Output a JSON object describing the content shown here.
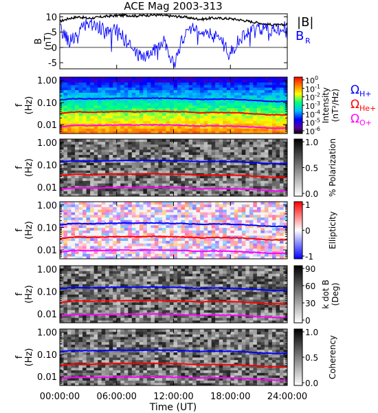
{
  "title": "ACE Mag 2003-313",
  "xlabel": "Time (UT)",
  "x_ticks": [
    "00:00:00",
    "06:00:00",
    "12:00:00",
    "18:00:00",
    "24:00:00"
  ],
  "colors": {
    "B_total": "#000000",
    "B_R": "#0000ff",
    "H_plus": "#0000ff",
    "He_plus": "#ff0000",
    "O_plus": "#ff00ff"
  },
  "chart_data": [
    {
      "type": "line",
      "panel": "magnetic-field",
      "ylabel": "B\n(nT)",
      "ylim": [
        -7,
        11
      ],
      "y_ticks": [
        "10",
        "5",
        "0",
        "-5"
      ],
      "x_hours": [
        0,
        1,
        2,
        3,
        4,
        5,
        6,
        7,
        8,
        9,
        10,
        11,
        12,
        13,
        14,
        15,
        16,
        17,
        18,
        19,
        20,
        21,
        22,
        23,
        24
      ],
      "series": [
        {
          "name": "|B|",
          "color": "#000000",
          "values": [
            8.5,
            9.5,
            10,
            9.5,
            9.8,
            10.2,
            10.4,
            10.5,
            10.3,
            10.5,
            10.6,
            10.4,
            10.2,
            10.0,
            9.5,
            9.2,
            9.6,
            9.5,
            9.4,
            9.0,
            8.5,
            8.0,
            7.5,
            7.3,
            7.5
          ]
        },
        {
          "name": "B_R",
          "color": "#0000ff",
          "values": [
            6,
            2,
            5,
            8,
            7,
            5,
            6,
            2,
            -2,
            -3,
            -1,
            3,
            -6,
            3,
            7,
            6,
            4,
            3,
            -2,
            3,
            5,
            6,
            6,
            6,
            7
          ]
        }
      ],
      "legend": [
        "|B|",
        "B_R"
      ]
    },
    {
      "type": "heatmap",
      "panel": "intensity",
      "ylabel": "f\n(Hz)",
      "y_scale": "log",
      "y_ticks": [
        "1.00",
        "0.10",
        "0.01"
      ],
      "colorbar_label": "Intensity\n(nT²/Hz)",
      "colorbar_ticks": [
        "10^0",
        "10^-1",
        "10^-2",
        "10^-3",
        "10^-4",
        "10^-5",
        "10^-6"
      ],
      "colormap": "rainbow",
      "legend": [
        "Ω_H+",
        "Ω_He+",
        "Ω_O+"
      ]
    },
    {
      "type": "heatmap",
      "panel": "polarization",
      "ylabel": "f\n(Hz)",
      "y_scale": "log",
      "y_ticks": [
        "1.00",
        "0.10",
        "0.01"
      ],
      "colorbar_label": "% Polarization",
      "colorbar_ticks": [
        "1.0",
        "0.5",
        "0.0"
      ],
      "colormap": "grayscale"
    },
    {
      "type": "heatmap",
      "panel": "ellipticity",
      "ylabel": "f\n(Hz)",
      "y_scale": "log",
      "y_ticks": [
        "1.00",
        "0.10",
        "0.01"
      ],
      "colorbar_label": "Ellipticity",
      "colorbar_ticks": [
        "1",
        "0",
        "-1"
      ],
      "colormap": "blue-white-red"
    },
    {
      "type": "heatmap",
      "panel": "k-dot-b",
      "ylabel": "f\n(Hz)",
      "y_scale": "log",
      "y_ticks": [
        "1.00",
        "0.10",
        "0.01"
      ],
      "colorbar_label": "k dot B\n(Deg)",
      "colorbar_ticks": [
        "90",
        "60",
        "30",
        "0"
      ],
      "colormap": "grayscale"
    },
    {
      "type": "heatmap",
      "panel": "coherency",
      "ylabel": "f\n(Hz)",
      "y_scale": "log",
      "y_ticks": [
        "1.00",
        "0.10",
        "0.01"
      ],
      "colorbar_label": "Coherency",
      "colorbar_ticks": [
        "1.0",
        "0.5",
        "0.0"
      ],
      "colormap": "grayscale"
    }
  ],
  "gyrofrequency_lines": {
    "x_hours": [
      0,
      1,
      2,
      3,
      4,
      5,
      6,
      7,
      8,
      9,
      10,
      11,
      12,
      13,
      14,
      15,
      16,
      17,
      18,
      19,
      20,
      21,
      22,
      23,
      24
    ],
    "H_plus_hz": [
      0.13,
      0.145,
      0.15,
      0.145,
      0.148,
      0.152,
      0.155,
      0.156,
      0.153,
      0.156,
      0.158,
      0.155,
      0.152,
      0.15,
      0.142,
      0.137,
      0.143,
      0.141,
      0.14,
      0.134,
      0.127,
      0.12,
      0.113,
      0.11,
      0.113
    ],
    "He_plus_hz": [
      0.032,
      0.036,
      0.038,
      0.036,
      0.037,
      0.038,
      0.039,
      0.039,
      0.038,
      0.039,
      0.04,
      0.039,
      0.038,
      0.038,
      0.036,
      0.034,
      0.036,
      0.035,
      0.035,
      0.034,
      0.032,
      0.03,
      0.028,
      0.028,
      0.028
    ],
    "O_plus_hz": [
      0.008,
      0.009,
      0.0095,
      0.009,
      0.0093,
      0.0095,
      0.0097,
      0.0098,
      0.0096,
      0.0098,
      0.0099,
      0.0097,
      0.0095,
      0.0094,
      0.0089,
      0.0086,
      0.009,
      0.0088,
      0.0088,
      0.0084,
      0.008,
      0.0076,
      0.0071,
      0.0069,
      0.0071
    ]
  },
  "legend_labels": {
    "B_total": "|B|",
    "B_R_main": "B",
    "B_R_sub": "R",
    "omega": "Ω",
    "H_sub": "H+",
    "He_sub": "He+",
    "O_sub": "O+"
  }
}
